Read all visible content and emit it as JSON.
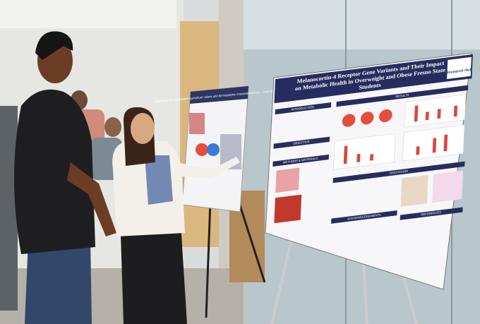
{
  "poster": {
    "title": "Melanocortin-4 Receptor Gene Variants and Their Impact on Metabolic Health in Overweight and Obese Fresno State Students",
    "logo": "Research Hub",
    "sections": [
      "INTRODUCTION",
      "RESULTS",
      "OBJECTIVE",
      "METHODS & MATERIALS",
      "DISCUSSION",
      "ACKNOWLEDGEMENTS",
      "REFERENCES"
    ]
  },
  "left_poster": {
    "title": "Assessing the sustainable agriculture values and demographic characteristics of ... undergraduates"
  }
}
